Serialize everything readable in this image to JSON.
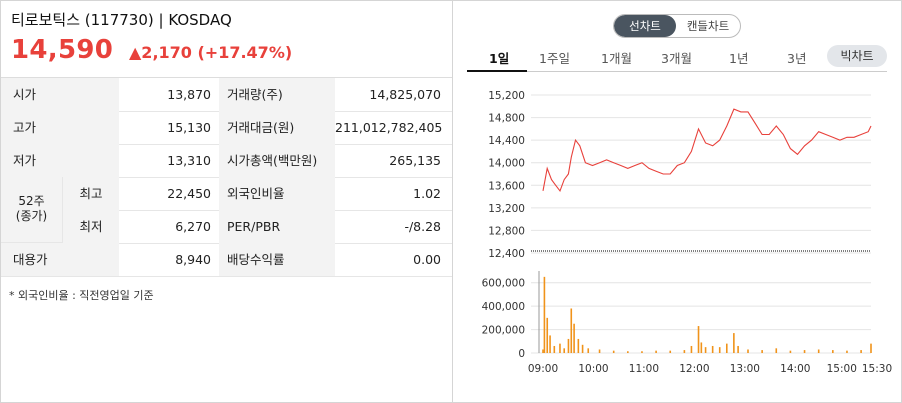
{
  "header": {
    "title": "티로보틱스 (117730) | KOSDAQ",
    "price": "14,590",
    "change": "▲2,170 (+17.47%)"
  },
  "table": {
    "rows": [
      {
        "l1": "시가",
        "v1": "13,870",
        "l2": "거래량(주)",
        "v2": "14,825,070"
      },
      {
        "l1": "고가",
        "v1": "15,130",
        "l2": "거래대금(원)",
        "v2": "211,012,782,405"
      },
      {
        "l1": "저가",
        "v1": "13,310",
        "l2": "시가총액(백만원)",
        "v2": "265,135"
      },
      {
        "l1": "최고",
        "v1": "22,450",
        "l2": "외국인비율",
        "v2": "1.02"
      },
      {
        "l1": "최저",
        "v1": "6,270",
        "l2": "PER/PBR",
        "v2": "-/8.28"
      },
      {
        "l1": "대용가",
        "v1": "8,940",
        "l2": "배당수익률",
        "v2": "0.00"
      }
    ],
    "week52_label_1": "52주",
    "week52_label_2": "(종가)",
    "note": "* 외국인비율 : 직전영업일 기준"
  },
  "chart_toggle": {
    "line": "선차트",
    "candle": "캔들차트"
  },
  "period_tabs": [
    "1일",
    "1주일",
    "1개월",
    "3개월",
    "1년",
    "3년"
  ],
  "active_tab": "1일",
  "big_chart_label": "빅차트",
  "chart_data": {
    "type": "line",
    "x_ticks": [
      "09:00",
      "10:00",
      "11:00",
      "12:00",
      "13:00",
      "14:00",
      "15:00",
      "15:30"
    ],
    "price_y_ticks": [
      "15,200",
      "14,800",
      "14,400",
      "14,000",
      "13,600",
      "13,200",
      "12,800",
      "12,400"
    ],
    "price_ylim": [
      12400,
      15200
    ],
    "volume_y_ticks": [
      "600,000",
      "400,000",
      "200,000",
      "0"
    ],
    "volume_ylim": [
      0,
      700000
    ],
    "price_series": [
      [
        0,
        13500
      ],
      [
        3,
        13900
      ],
      [
        6,
        13700
      ],
      [
        9,
        13600
      ],
      [
        12,
        13500
      ],
      [
        15,
        13700
      ],
      [
        18,
        13800
      ],
      [
        20,
        14100
      ],
      [
        23,
        14400
      ],
      [
        26,
        14300
      ],
      [
        30,
        14000
      ],
      [
        35,
        13950
      ],
      [
        40,
        14000
      ],
      [
        45,
        14050
      ],
      [
        50,
        14000
      ],
      [
        55,
        13950
      ],
      [
        60,
        13900
      ],
      [
        65,
        13950
      ],
      [
        70,
        14000
      ],
      [
        75,
        13900
      ],
      [
        80,
        13850
      ],
      [
        85,
        13800
      ],
      [
        90,
        13800
      ],
      [
        95,
        13950
      ],
      [
        100,
        14000
      ],
      [
        105,
        14200
      ],
      [
        110,
        14600
      ],
      [
        115,
        14350
      ],
      [
        120,
        14300
      ],
      [
        125,
        14400
      ],
      [
        130,
        14650
      ],
      [
        135,
        14950
      ],
      [
        140,
        14900
      ],
      [
        145,
        14900
      ],
      [
        150,
        14700
      ],
      [
        155,
        14500
      ],
      [
        160,
        14500
      ],
      [
        165,
        14650
      ],
      [
        170,
        14500
      ],
      [
        175,
        14250
      ],
      [
        180,
        14150
      ],
      [
        185,
        14300
      ],
      [
        190,
        14400
      ],
      [
        195,
        14550
      ],
      [
        200,
        14500
      ],
      [
        205,
        14450
      ],
      [
        210,
        14400
      ],
      [
        215,
        14450
      ],
      [
        220,
        14450
      ],
      [
        225,
        14500
      ],
      [
        230,
        14550
      ],
      [
        232,
        14650
      ]
    ],
    "volume_series": [
      [
        0,
        30000
      ],
      [
        1,
        650000
      ],
      [
        3,
        300000
      ],
      [
        5,
        150000
      ],
      [
        8,
        60000
      ],
      [
        12,
        80000
      ],
      [
        15,
        40000
      ],
      [
        18,
        120000
      ],
      [
        20,
        380000
      ],
      [
        22,
        250000
      ],
      [
        25,
        120000
      ],
      [
        28,
        70000
      ],
      [
        32,
        40000
      ],
      [
        40,
        30000
      ],
      [
        50,
        20000
      ],
      [
        60,
        15000
      ],
      [
        70,
        15000
      ],
      [
        80,
        20000
      ],
      [
        90,
        20000
      ],
      [
        100,
        25000
      ],
      [
        105,
        60000
      ],
      [
        110,
        230000
      ],
      [
        112,
        90000
      ],
      [
        115,
        50000
      ],
      [
        120,
        60000
      ],
      [
        125,
        50000
      ],
      [
        130,
        80000
      ],
      [
        135,
        170000
      ],
      [
        138,
        60000
      ],
      [
        145,
        30000
      ],
      [
        155,
        25000
      ],
      [
        165,
        40000
      ],
      [
        175,
        20000
      ],
      [
        185,
        25000
      ],
      [
        195,
        30000
      ],
      [
        205,
        25000
      ],
      [
        215,
        20000
      ],
      [
        225,
        25000
      ],
      [
        232,
        80000
      ]
    ],
    "colors": {
      "line": "#e8413b",
      "volume": "#f0931a",
      "axis": "#999999"
    }
  }
}
